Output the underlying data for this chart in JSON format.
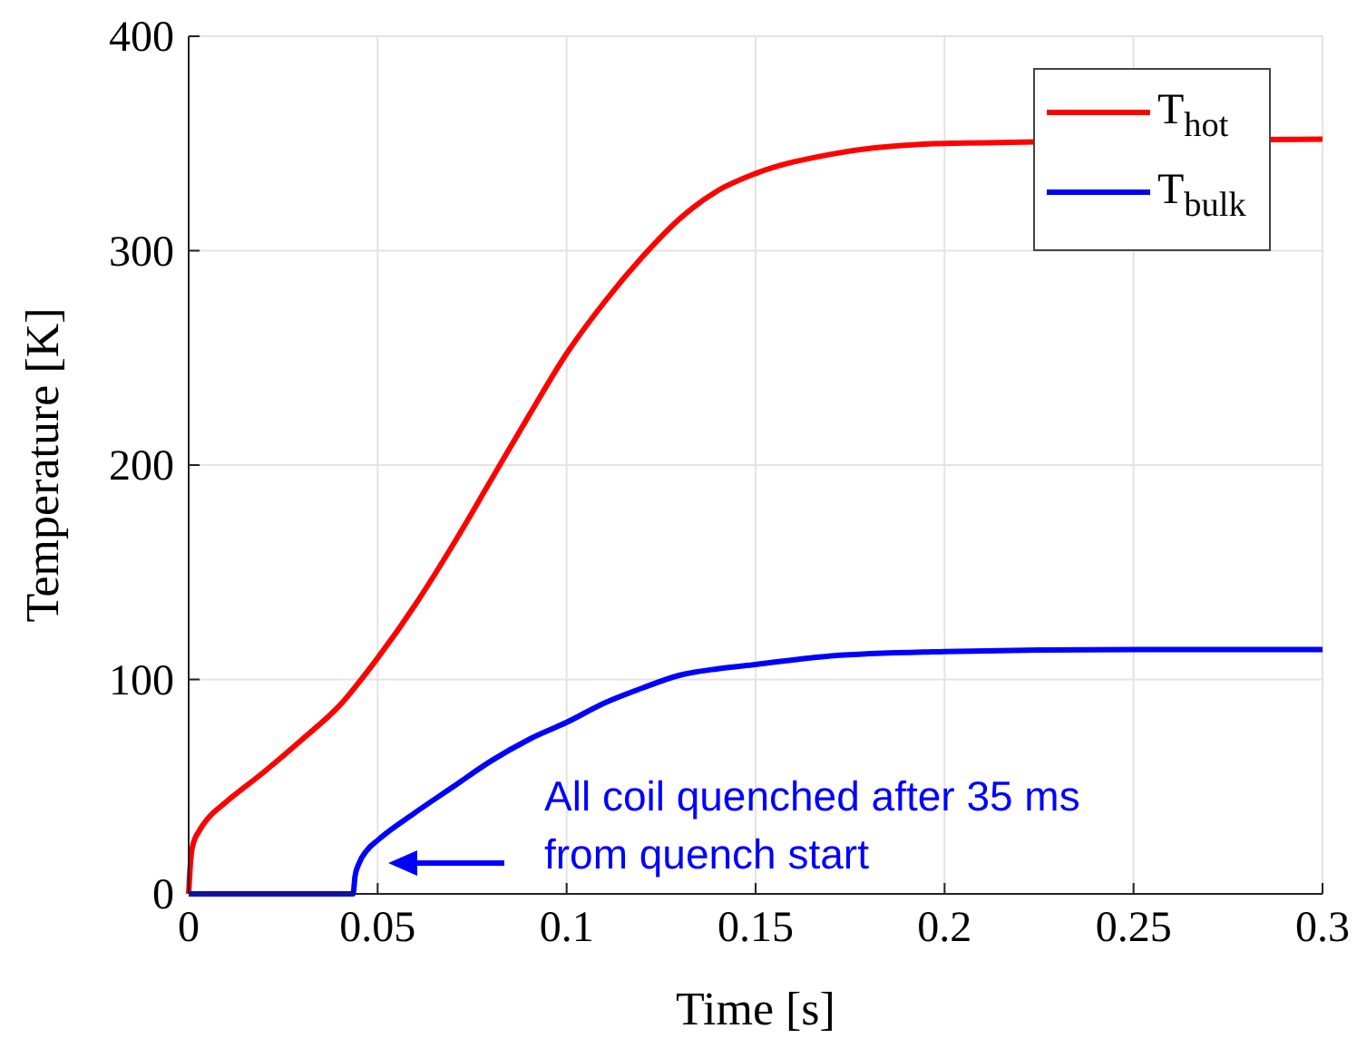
{
  "chart_data": {
    "type": "line",
    "xlabel": "Time [s]",
    "ylabel": "Temperature [K]",
    "xlim": [
      0,
      0.3
    ],
    "ylim": [
      0,
      400
    ],
    "xticks": [
      0,
      0.05,
      0.1,
      0.15,
      0.2,
      0.25,
      0.3
    ],
    "yticks": [
      0,
      100,
      200,
      300,
      400
    ],
    "grid": true,
    "legend": "top right",
    "line_style": "solid",
    "marker": "none",
    "series": [
      {
        "name": "T$_{hot}$",
        "color": "#ff0000",
        "x": [
          0,
          0.0005,
          0.001,
          0.003,
          0.005,
          0.01,
          0.02,
          0.03,
          0.04,
          0.05,
          0.06,
          0.07,
          0.08,
          0.09,
          0.1,
          0.11,
          0.12,
          0.13,
          0.14,
          0.15,
          0.17,
          0.2,
          0.3
        ],
        "values": [
          0,
          15,
          22,
          30,
          35,
          43,
          57,
          72,
          88,
          110,
          135,
          163,
          193,
          223,
          252,
          276,
          297,
          315,
          328,
          336,
          345,
          350,
          352
        ]
      },
      {
        "name": "T$_{bulk}$",
        "color": "#0000ff",
        "x": [
          0,
          0.0435,
          0.044,
          0.045,
          0.047,
          0.05,
          0.06,
          0.07,
          0.08,
          0.09,
          0.1,
          0.11,
          0.12,
          0.13,
          0.14,
          0.15,
          0.17,
          0.2,
          0.25,
          0.3
        ],
        "values": [
          0,
          0,
          8,
          14,
          20,
          25,
          38,
          50,
          62,
          72,
          80,
          89,
          96,
          102,
          105,
          107,
          111,
          113,
          114,
          114
        ]
      }
    ],
    "annotations": [
      "All coil quenched after 35 ms\nfrom quench start"
    ]
  }
}
